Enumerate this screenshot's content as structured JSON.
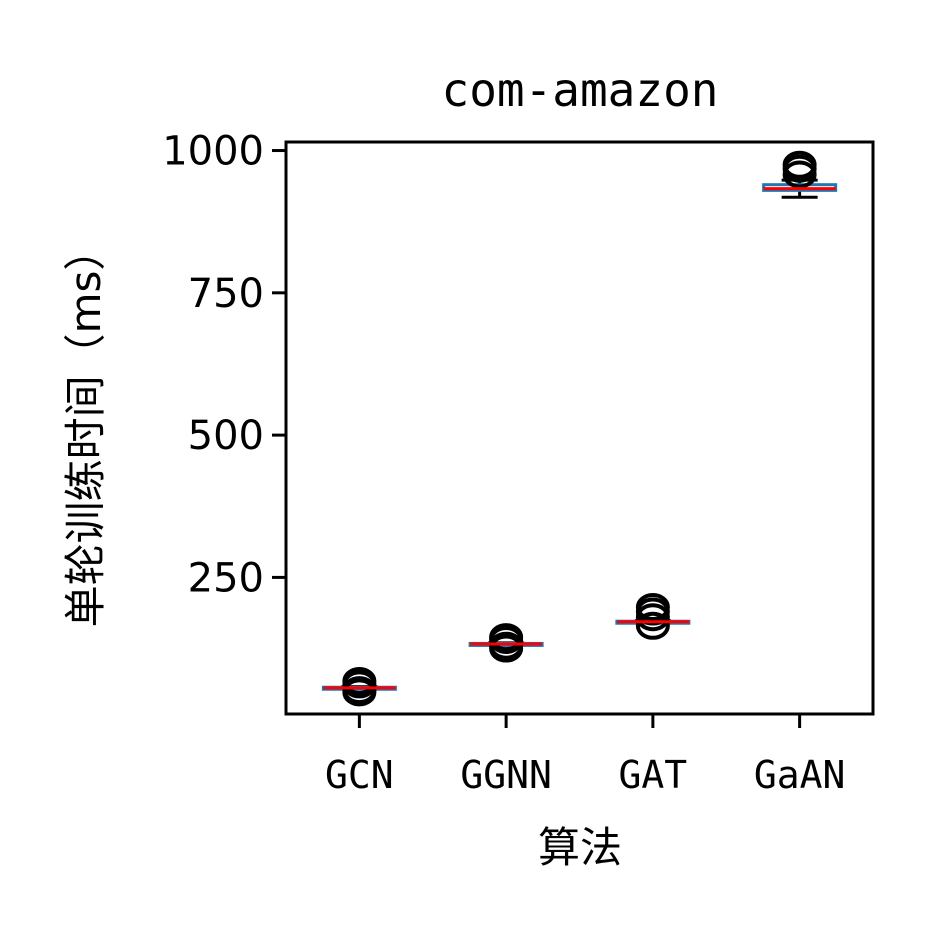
{
  "chart_data": {
    "type": "box",
    "title": "com-amazon",
    "xlabel": "算法",
    "ylabel": "单轮训练时间（ms）",
    "categories": [
      "GCN",
      "GGNN",
      "GAT",
      "GaAN"
    ],
    "ylim": [
      10,
      1015
    ],
    "yticks": [
      250,
      500,
      750,
      1000
    ],
    "ytick_labels": [
      "250",
      "500",
      "750",
      "1000"
    ],
    "grid": false,
    "legend": "none",
    "boxes": [
      {
        "category": "GCN",
        "median": 56,
        "q1": 55,
        "q3": 57,
        "whisker_low": 54,
        "whisker_high": 58,
        "outliers": [
          48,
          52,
          62,
          68
        ]
      },
      {
        "category": "GGNN",
        "median": 133,
        "q1": 132,
        "q3": 134,
        "whisker_low": 131,
        "whisker_high": 135,
        "outliers": [
          125,
          130,
          140,
          145
        ]
      },
      {
        "category": "GAT",
        "median": 172,
        "q1": 171,
        "q3": 173,
        "whisker_low": 170,
        "whisker_high": 174,
        "outliers": [
          165,
          180,
          190,
          198
        ]
      },
      {
        "category": "GaAN",
        "median": 933,
        "q1": 930,
        "q3": 940,
        "whisker_low": 918,
        "whisker_high": 948,
        "outliers": [
          958,
          968,
          975
        ]
      }
    ],
    "colors": {
      "median": "#ff0000",
      "box": "#1f77b4",
      "whisker": "#000000",
      "outlier": "#000000",
      "axes": "#000000"
    }
  }
}
